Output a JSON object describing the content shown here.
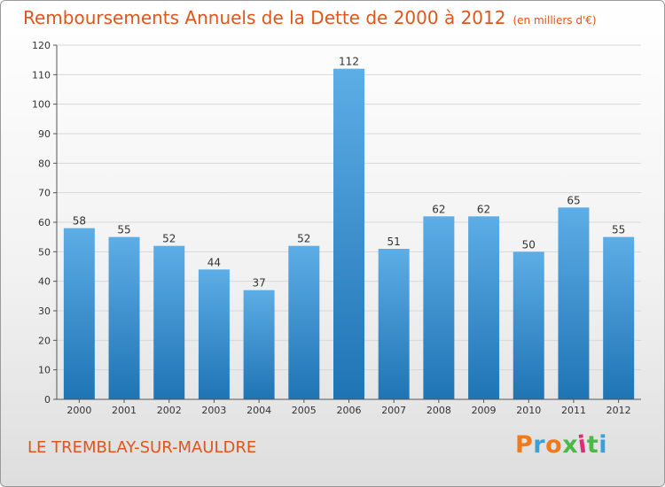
{
  "title": "Remboursements Annuels de la Dette de 2000 à 2012",
  "unit": "(en milliers d'€)",
  "town": "LE TREMBLAY-SUR-MAULDRE",
  "logo": {
    "text": "Proxiti",
    "letter_colors": [
      "#f07a1a",
      "#3aa0d8",
      "#f07a1a",
      "#4cb848",
      "#e02a7a",
      "#4cb848",
      "#3aa0d8"
    ]
  },
  "colors": {
    "bar_top": "#5dade6",
    "bar_bottom": "#1f74b4",
    "title": "#e0551a"
  },
  "chart_data": {
    "type": "bar",
    "categories": [
      "2000",
      "2001",
      "2002",
      "2003",
      "2004",
      "2005",
      "2006",
      "2007",
      "2008",
      "2009",
      "2010",
      "2011",
      "2012"
    ],
    "values": [
      58,
      55,
      52,
      44,
      37,
      52,
      112,
      51,
      62,
      62,
      50,
      65,
      55
    ],
    "ylim": [
      0,
      120
    ],
    "yticks": [
      0,
      10,
      20,
      30,
      40,
      50,
      60,
      70,
      80,
      90,
      100,
      110,
      120
    ],
    "grid": true
  }
}
